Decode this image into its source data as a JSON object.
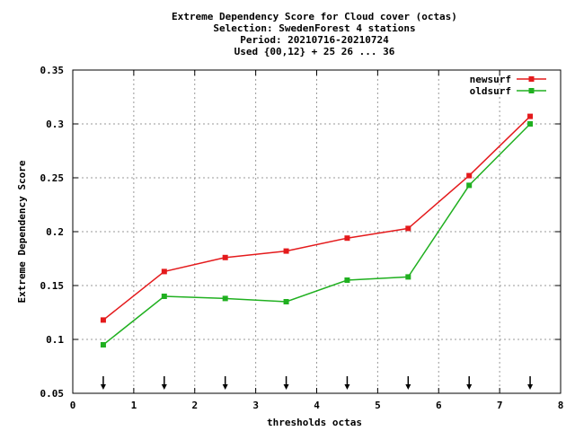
{
  "chart_data": {
    "type": "line",
    "title_lines": [
      "Extreme Dependency Score  for Cloud cover (octas)",
      "Selection: SwedenForest       4 stations",
      "Period: 20210716-20210724",
      "Used {00,12} + 25 26 ... 36"
    ],
    "xlabel": "thresholds octas",
    "ylabel": "Extreme Dependency Score",
    "xlim": [
      0,
      8
    ],
    "ylim": [
      0.05,
      0.35
    ],
    "x_ticks": [
      0,
      1,
      2,
      3,
      4,
      5,
      6,
      7,
      8
    ],
    "y_ticks": [
      0.05,
      0.1,
      0.15,
      0.2,
      0.25,
      0.3,
      0.35
    ],
    "x_tick_labels": [
      "0",
      "1",
      "2",
      "3",
      "4",
      "5",
      "6",
      "7",
      "8"
    ],
    "y_tick_labels": [
      "0.05",
      "0.1",
      "0.15",
      "0.2",
      "0.25",
      "0.3",
      "0.35"
    ],
    "grid": true,
    "legend_position": "top-right",
    "x": [
      0.5,
      1.5,
      2.5,
      3.5,
      4.5,
      5.5,
      6.5,
      7.5
    ],
    "series": [
      {
        "name": "newsurf",
        "color": "#e41a1c",
        "values": [
          0.118,
          0.163,
          0.176,
          0.182,
          0.194,
          0.203,
          0.252,
          0.307
        ]
      },
      {
        "name": "oldsurf",
        "color": "#20b020",
        "values": [
          0.095,
          0.14,
          0.138,
          0.135,
          0.155,
          0.158,
          0.243,
          0.3
        ]
      }
    ],
    "arrow_markers_x": [
      0.5,
      1.5,
      2.5,
      3.5,
      4.5,
      5.5,
      6.5,
      7.5
    ]
  }
}
